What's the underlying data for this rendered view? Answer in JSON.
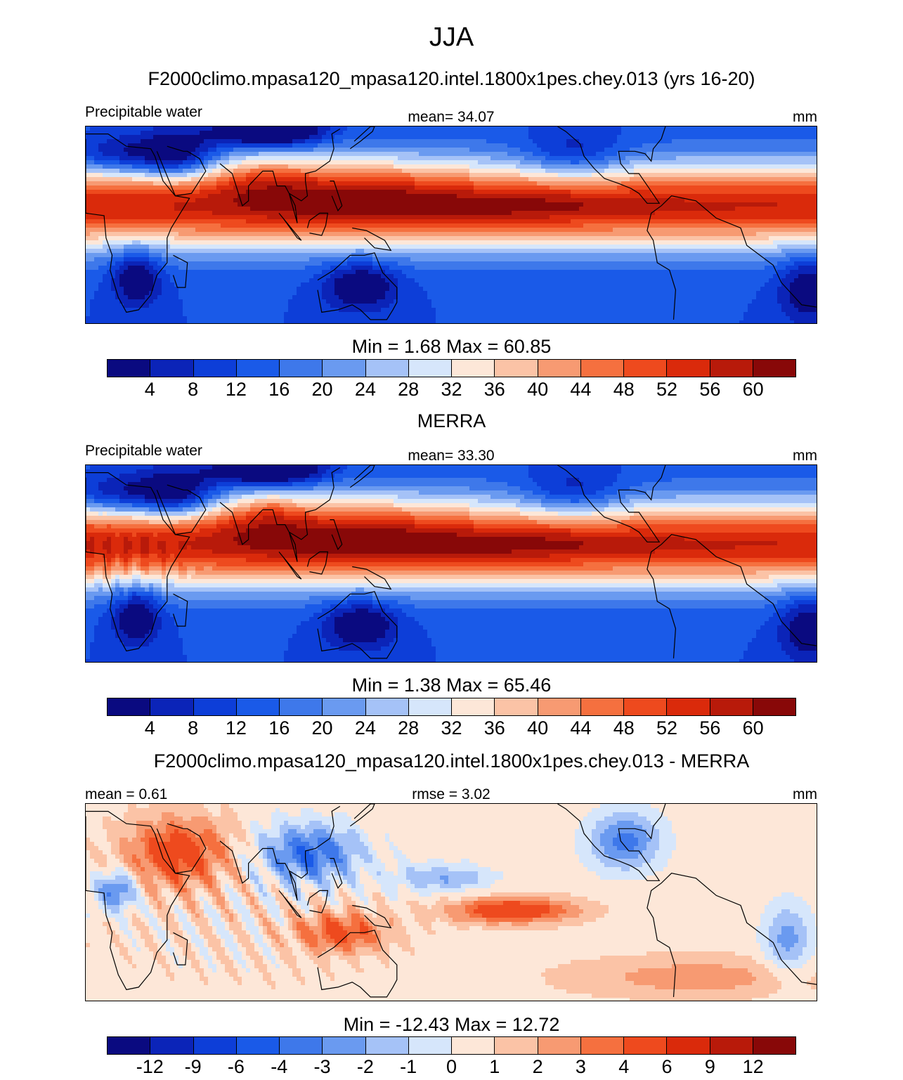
{
  "title": "JJA",
  "colors": {
    "seq": [
      "#0a0a80",
      "#0b24b8",
      "#0d3ed8",
      "#1a5ae8",
      "#3e78ea",
      "#6a9af0",
      "#a5c2f7",
      "#d6e6fb",
      "#fde7d8",
      "#fbc3a6",
      "#f79a72",
      "#f5703f",
      "#ee4a1e",
      "#da2a0b",
      "#b81a0a",
      "#880808"
    ],
    "land": "#000000"
  },
  "panels": [
    {
      "title": "F2000climo.mpasa120_mpasa120.intel.1800x1pes.chey.013 (yrs 16-20)",
      "left_label": "Precipitable water",
      "center_label": "mean=  34.07",
      "units": "mm",
      "minmax": "Min =   1.68 Max =  60.85",
      "ticks": [
        "4",
        "8",
        "12",
        "16",
        "20",
        "24",
        "28",
        "32",
        "36",
        "40",
        "44",
        "48",
        "52",
        "56",
        "60"
      ],
      "kind": "abs"
    },
    {
      "title": "MERRA",
      "left_label": "Precipitable water",
      "center_label": "mean=  33.30",
      "units": "mm",
      "minmax": "Min =   1.38 Max =  65.46",
      "ticks": [
        "4",
        "8",
        "12",
        "16",
        "20",
        "24",
        "28",
        "32",
        "36",
        "40",
        "44",
        "48",
        "52",
        "56",
        "60"
      ],
      "kind": "abs"
    },
    {
      "title": "F2000climo.mpasa120_mpasa120.intel.1800x1pes.chey.013 - MERRA",
      "left_label": "mean =   0.61",
      "center_label": "rmse =   3.02",
      "units": "mm",
      "minmax": "Min = -12.43 Max =  12.72",
      "ticks": [
        "-12",
        "-9",
        "-6",
        "-4",
        "-3",
        "-2",
        "-1",
        "0",
        "1",
        "2",
        "3",
        "4",
        "6",
        "9",
        "12"
      ],
      "kind": "diff"
    }
  ]
}
